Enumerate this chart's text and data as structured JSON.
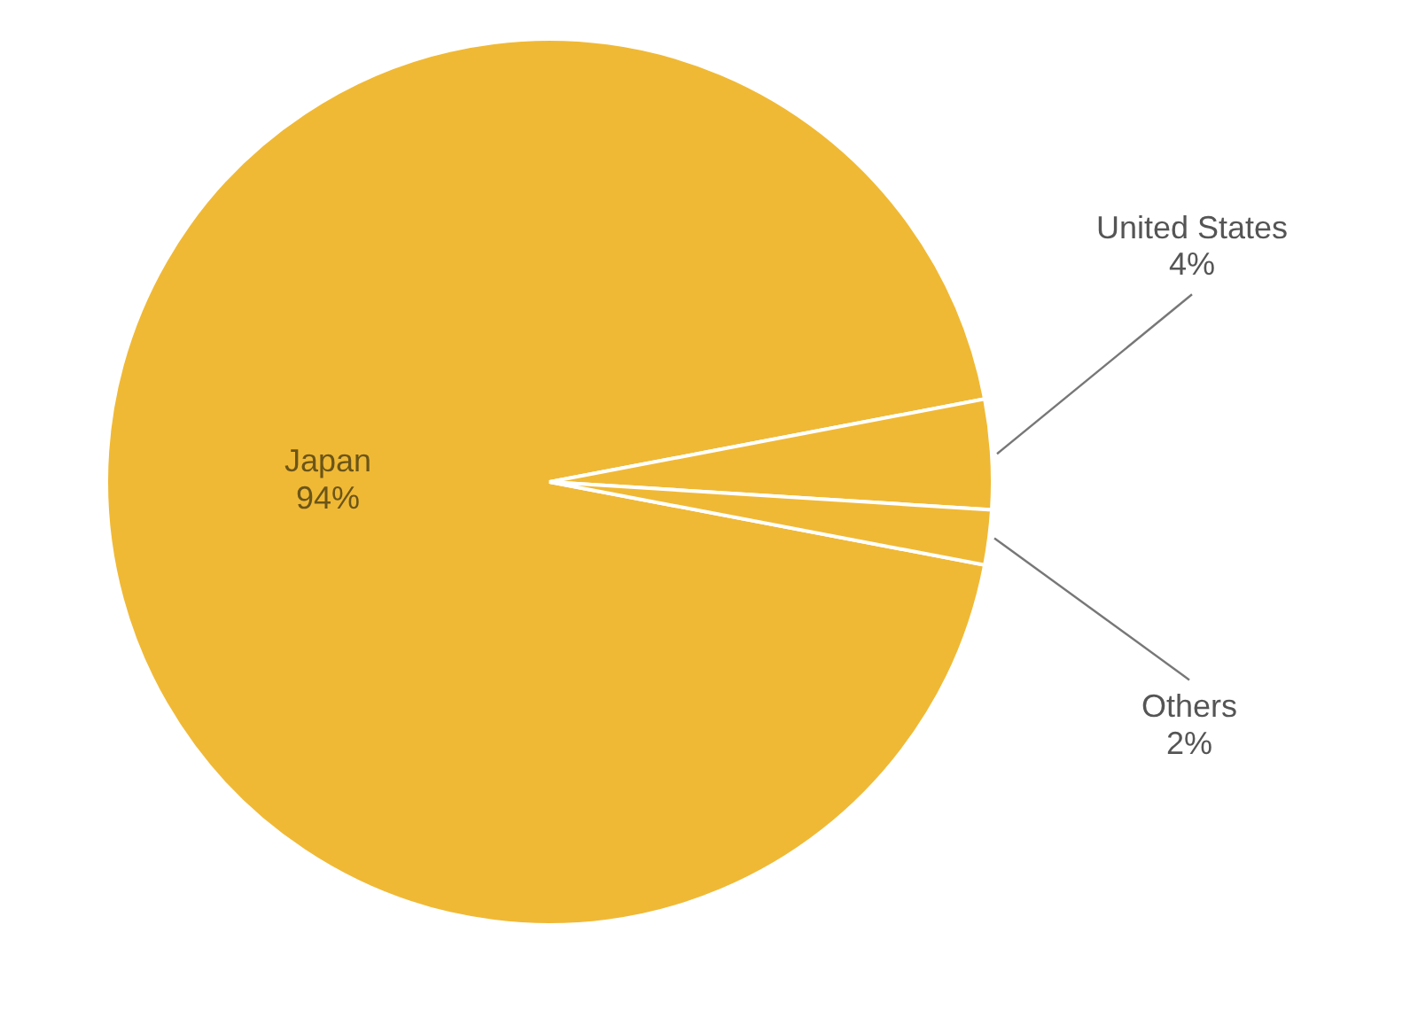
{
  "chart_data": {
    "type": "pie",
    "categories": [
      "Japan",
      "United States",
      "Others"
    ],
    "values": [
      94,
      4,
      2
    ],
    "colors": [
      "#f0b935",
      "#f0b935",
      "#f0b935"
    ],
    "value_labels": [
      "94%",
      "4%",
      "2%"
    ]
  }
}
